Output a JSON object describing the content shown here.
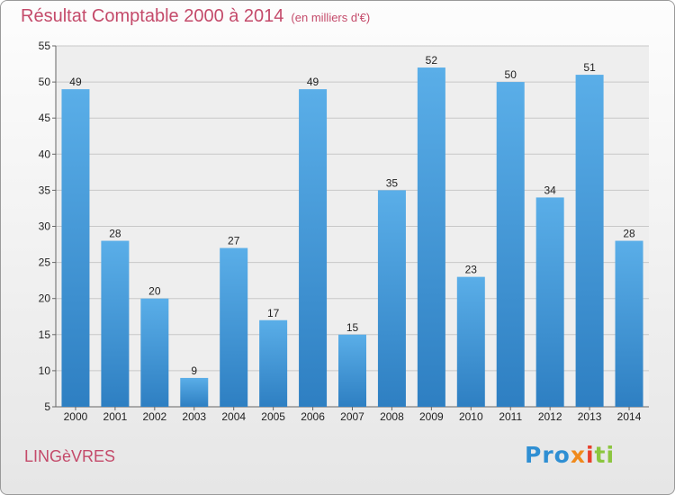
{
  "chart_data": {
    "type": "bar",
    "title": "Résultat Comptable 2000 à 2014",
    "subtitle": "(en milliers d'€)",
    "categories": [
      "2000",
      "2001",
      "2002",
      "2003",
      "2004",
      "2005",
      "2006",
      "2007",
      "2008",
      "2009",
      "2010",
      "2011",
      "2012",
      "2013",
      "2014"
    ],
    "values": [
      49,
      28,
      20,
      9,
      27,
      17,
      49,
      15,
      35,
      52,
      23,
      50,
      34,
      51,
      28
    ],
    "ylim": [
      5,
      55
    ],
    "yticks": [
      5,
      10,
      15,
      20,
      25,
      30,
      35,
      40,
      45,
      50,
      55
    ],
    "grid": true,
    "bar_color": "#4a9fde",
    "xlabel": "",
    "ylabel": ""
  },
  "location": "LINGèVRES",
  "brand": {
    "parts": [
      "Pro",
      "x",
      "i",
      "ti"
    ]
  }
}
